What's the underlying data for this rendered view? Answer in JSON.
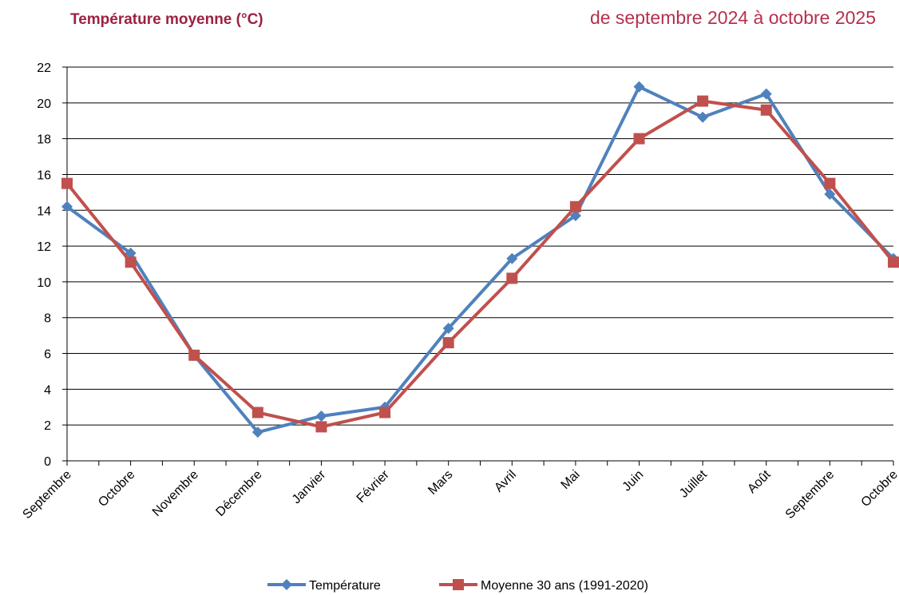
{
  "chart_data": {
    "type": "line",
    "title": "Température moyenne (°C)",
    "subtitle": "de septembre 2024 à octobre 2025",
    "categories": [
      "Septembre",
      "Octobre",
      "Novembre",
      "Décembre",
      "Janvier",
      "Février",
      "Mars",
      "Avril",
      "Mai",
      "Juin",
      "Juillet",
      "Août",
      "Septembre",
      "Octobre"
    ],
    "series": [
      {
        "name": "Température",
        "color": "#4f81bd",
        "marker": "diamond",
        "values": [
          14.2,
          11.6,
          5.9,
          1.6,
          2.5,
          3.0,
          7.4,
          11.3,
          13.7,
          20.9,
          19.2,
          20.5,
          14.9,
          11.3
        ]
      },
      {
        "name": "Moyenne 30 ans (1991-2020)",
        "color": "#c0504d",
        "marker": "square",
        "values": [
          15.5,
          11.1,
          5.9,
          2.7,
          1.9,
          2.7,
          6.6,
          10.2,
          14.2,
          18.0,
          20.1,
          19.6,
          15.5,
          11.1
        ]
      }
    ],
    "ylim": [
      0,
      22
    ],
    "yticks": [
      0,
      2,
      4,
      6,
      8,
      10,
      12,
      14,
      16,
      18,
      20,
      22
    ],
    "grid": true,
    "legend": "bottom"
  }
}
